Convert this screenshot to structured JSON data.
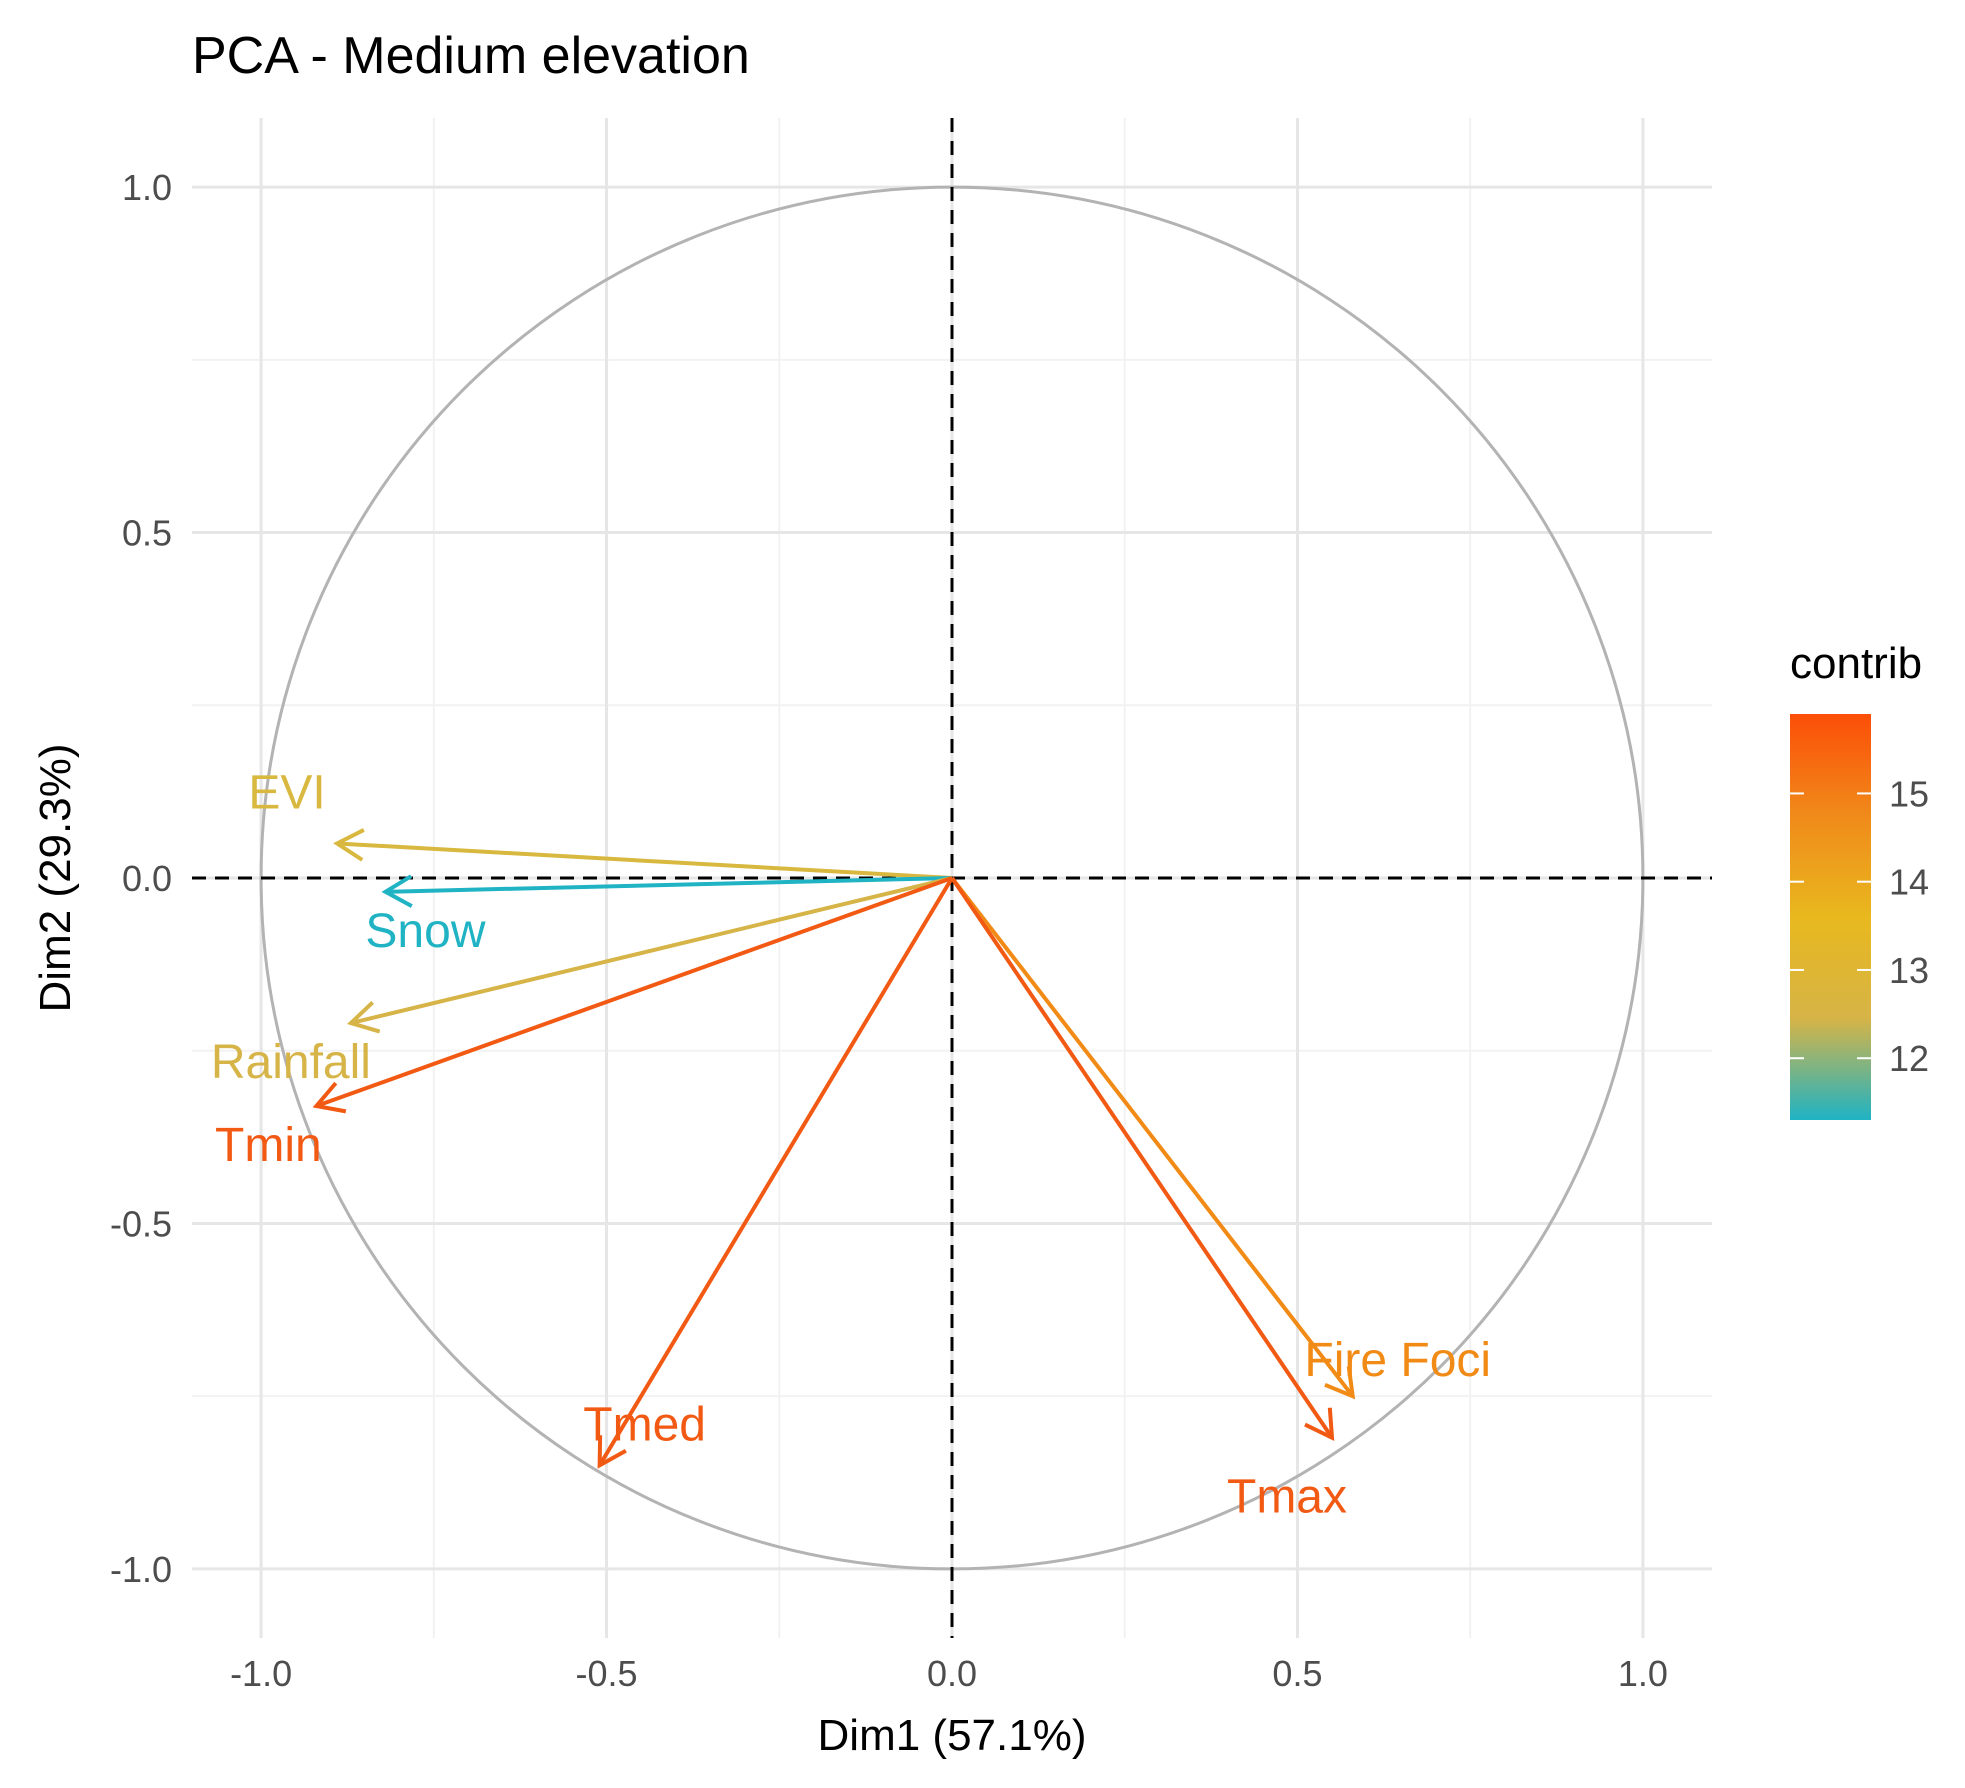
{
  "chart_data": {
    "type": "scatter",
    "subtype": "pca-variable-correlation-circle",
    "title": "PCA - Medium elevation",
    "xlabel": "Dim1 (57.1%)",
    "ylabel": "Dim2 (29.3%)",
    "xlim": [
      -1.1,
      1.1
    ],
    "ylim": [
      -1.1,
      1.1
    ],
    "x_ticks": [
      -1.0,
      -0.5,
      0.0,
      0.5,
      1.0
    ],
    "x_tick_labels": [
      "-1.0",
      "-0.5",
      "0.0",
      "0.5",
      "1.0"
    ],
    "y_ticks": [
      -1.0,
      -0.5,
      0.0,
      0.5,
      1.0
    ],
    "y_tick_labels": [
      "-1.0",
      "-0.5",
      "0.0",
      "0.5",
      "1.0"
    ],
    "grid": true,
    "unit_circle": true,
    "reference_lines": {
      "x": 0,
      "y": 0,
      "style": "dashed"
    },
    "series": [
      {
        "name": "EVI",
        "x": -0.89,
        "y": 0.05,
        "contrib": 13.2,
        "color": "#D8B83E"
      },
      {
        "name": "Snow",
        "x": -0.82,
        "y": -0.02,
        "contrib": 11.3,
        "color": "#1FB3C4"
      },
      {
        "name": "Rainfall",
        "x": -0.87,
        "y": -0.21,
        "contrib": 13.1,
        "color": "#D6B447"
      },
      {
        "name": "Tmin",
        "x": -0.92,
        "y": -0.33,
        "contrib": 15.9,
        "color": "#F25A14"
      },
      {
        "name": "Tmed",
        "x": -0.51,
        "y": -0.85,
        "contrib": 15.9,
        "color": "#F25A14"
      },
      {
        "name": "Fire Foci",
        "x": 0.58,
        "y": -0.75,
        "contrib": 14.7,
        "color": "#F28A16"
      },
      {
        "name": "Tmax",
        "x": 0.55,
        "y": -0.81,
        "contrib": 15.9,
        "color": "#F25A14"
      }
    ],
    "legend": {
      "title": "contrib",
      "position": "right",
      "type": "gradient",
      "range": [
        11.3,
        15.9
      ],
      "ticks": [
        12,
        13,
        14,
        15
      ],
      "tick_labels": [
        "12",
        "13",
        "14",
        "15"
      ],
      "gradient_colors": [
        "#1FB3C4",
        "#D6B447",
        "#E8B81E",
        "#F08A1A",
        "#FC4E08"
      ]
    }
  }
}
